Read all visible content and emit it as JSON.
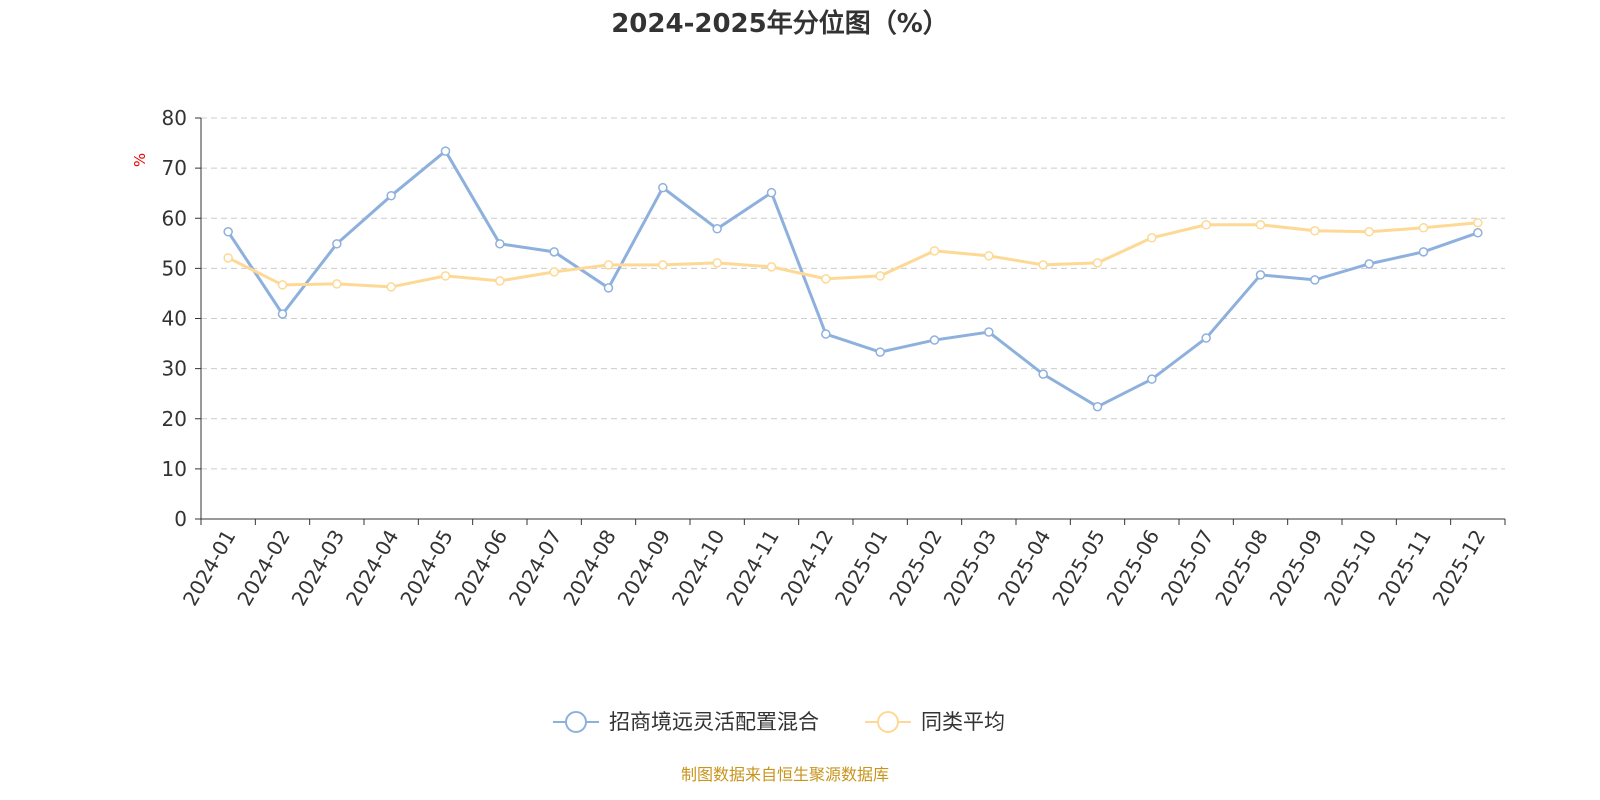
{
  "chart_data": {
    "type": "line",
    "title": "2024-2025年分位图（%）",
    "ylabel": "%",
    "ylim": [
      0,
      80
    ],
    "yticks": [
      0,
      10,
      20,
      30,
      40,
      50,
      60,
      70,
      80
    ],
    "grid": true,
    "legend_position": "bottom-center",
    "categories": [
      "2024-01",
      "2024-02",
      "2024-03",
      "2024-04",
      "2024-05",
      "2024-06",
      "2024-07",
      "2024-08",
      "2024-09",
      "2024-10",
      "2024-11",
      "2024-12",
      "2025-01",
      "2025-02",
      "2025-03",
      "2025-04",
      "2025-05",
      "2025-06",
      "2025-07",
      "2025-08",
      "2025-09",
      "2025-10",
      "2025-11",
      "2025-12"
    ],
    "series": [
      {
        "name": "招商境远灵活配置混合",
        "color": "#8eb0dd",
        "values": [
          57.3,
          40.9,
          54.9,
          64.5,
          73.4,
          54.9,
          53.3,
          46.1,
          66.1,
          57.9,
          65.1,
          36.9,
          33.3,
          35.7,
          37.3,
          28.9,
          22.4,
          27.9,
          36.1,
          48.7,
          47.7,
          50.9,
          53.3,
          57.1
        ]
      },
      {
        "name": "同类平均",
        "color": "#fdd995",
        "values": [
          52.1,
          46.7,
          46.9,
          46.3,
          48.5,
          47.5,
          49.3,
          50.7,
          50.7,
          51.1,
          50.3,
          47.9,
          48.5,
          53.5,
          52.5,
          50.7,
          51.1,
          56.1,
          58.7,
          58.7,
          57.5,
          57.3,
          58.1,
          59.1
        ]
      }
    ],
    "source": "制图数据来自恒生聚源数据库"
  }
}
